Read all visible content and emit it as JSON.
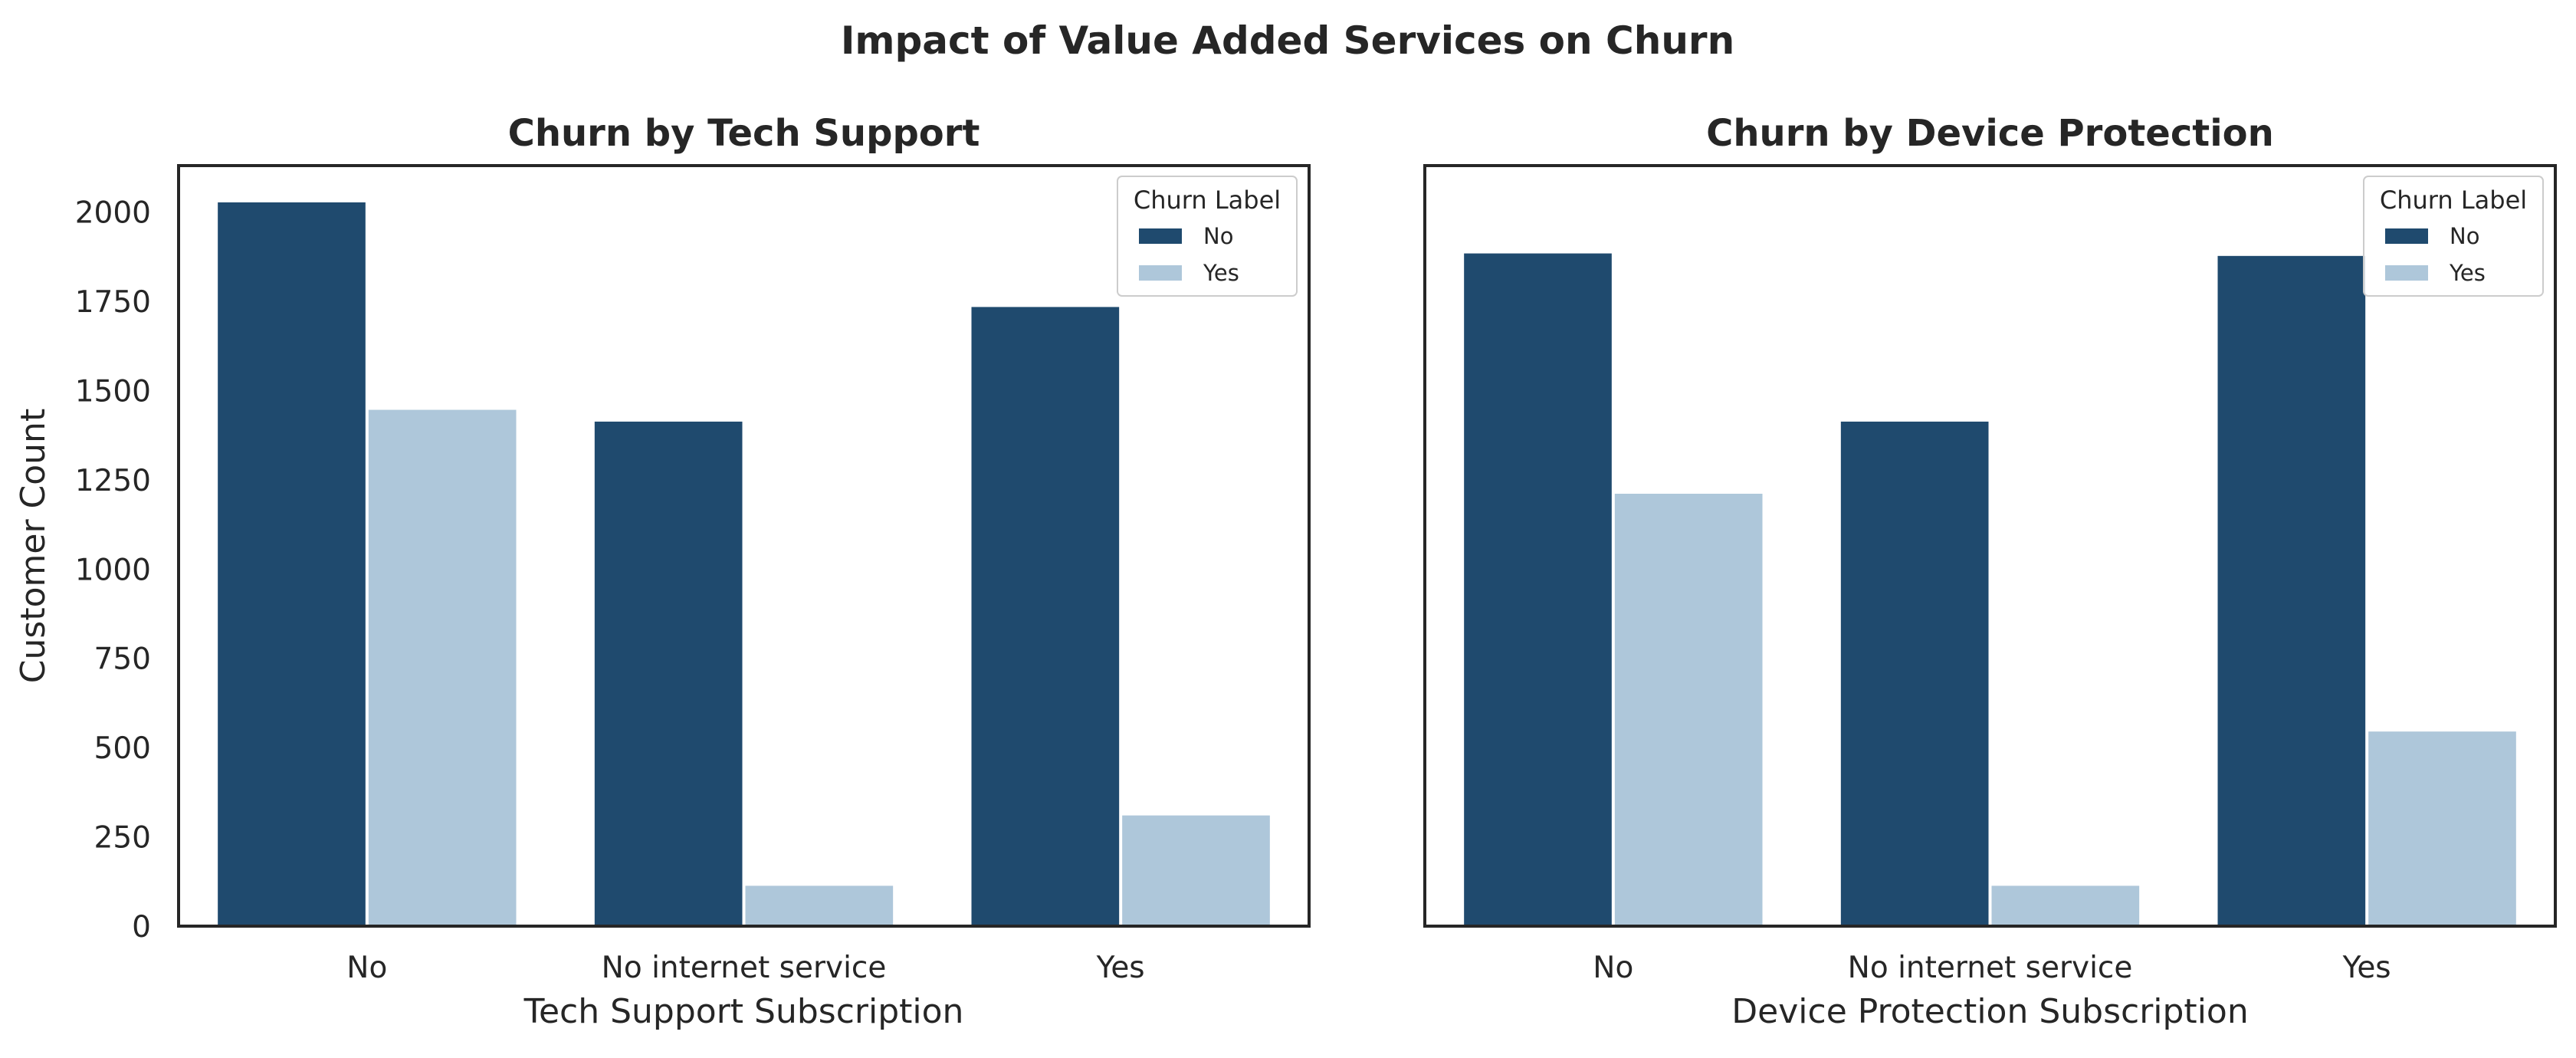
{
  "figure": {
    "suptitle": "Impact of Value Added Services on Churn"
  },
  "colors": {
    "No": "#1f4a6e",
    "Yes": "#aec7da",
    "axis": "#262626",
    "legend_border": "#cccccc"
  },
  "chart_data": [
    {
      "type": "bar",
      "title": "Churn by Tech Support",
      "xlabel": "Tech Support Subscription",
      "ylabel": "Customer Count",
      "categories": [
        "No",
        "No internet service",
        "Yes"
      ],
      "series": [
        {
          "name": "No",
          "values": [
            2027,
            1413,
            1734
          ]
        },
        {
          "name": "Yes",
          "values": [
            1446,
            113,
            310
          ]
        }
      ],
      "ylim": [
        0,
        2130
      ],
      "yticks": [
        0,
        250,
        500,
        750,
        1000,
        1250,
        1500,
        1750,
        2000
      ],
      "grid": false,
      "legend": {
        "title": "Churn Label",
        "placement": "top-right"
      }
    },
    {
      "type": "bar",
      "title": "Churn by Device Protection",
      "xlabel": "Device Protection Subscription",
      "ylabel": "",
      "categories": [
        "No",
        "No internet service",
        "Yes"
      ],
      "series": [
        {
          "name": "No",
          "values": [
            1884,
            1413,
            1877
          ]
        },
        {
          "name": "Yes",
          "values": [
            1211,
            113,
            545
          ]
        }
      ],
      "ylim": [
        0,
        2130
      ],
      "grid": false,
      "legend": {
        "title": "Churn Label",
        "placement": "top-right"
      }
    }
  ]
}
